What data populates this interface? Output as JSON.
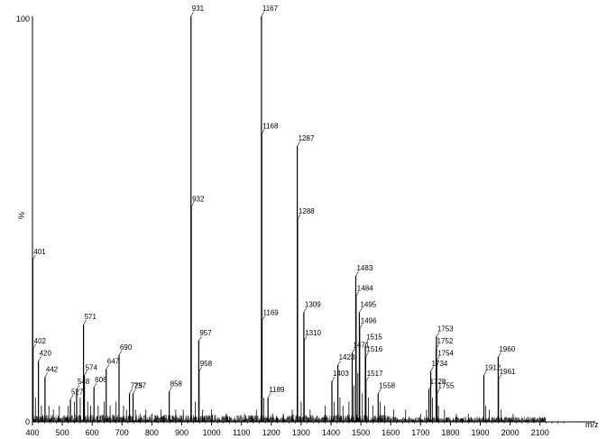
{
  "chart_data": {
    "type": "bar",
    "title": "",
    "xlabel": "m/z",
    "ylabel": "%",
    "xlim": [
      400,
      2200
    ],
    "ylim": [
      0,
      100
    ],
    "x_ticks": [
      "400",
      "500",
      "600",
      "700",
      "800",
      "900",
      "1000",
      "1100",
      "1200",
      "1300",
      "1400",
      "1500",
      "1600",
      "1700",
      "1800",
      "1900",
      "2000",
      "2100"
    ],
    "y_ticks": [
      "100",
      "0"
    ],
    "grid": false,
    "legend": "none",
    "colors": {
      "bars": "#000000",
      "axis": "#000000",
      "background": "#ffffff"
    },
    "peaks": [
      {
        "mz": 401,
        "intensity": 40,
        "label": "401"
      },
      {
        "mz": 402,
        "intensity": 18,
        "label": "402"
      },
      {
        "mz": 420,
        "intensity": 15,
        "label": "420"
      },
      {
        "mz": 442,
        "intensity": 11,
        "label": "442"
      },
      {
        "mz": 527,
        "intensity": 5.5,
        "label": "527"
      },
      {
        "mz": 548,
        "intensity": 8,
        "label": "548"
      },
      {
        "mz": 571,
        "intensity": 24,
        "label": "571"
      },
      {
        "mz": 574,
        "intensity": 11.5,
        "label": "574"
      },
      {
        "mz": 606,
        "intensity": 8.5,
        "label": "606"
      },
      {
        "mz": 647,
        "intensity": 13,
        "label": "647"
      },
      {
        "mz": 690,
        "intensity": 16.5,
        "label": "690"
      },
      {
        "mz": 725,
        "intensity": 7,
        "label": "725"
      },
      {
        "mz": 737,
        "intensity": 7,
        "label": "737"
      },
      {
        "mz": 858,
        "intensity": 7.5,
        "label": "858"
      },
      {
        "mz": 931,
        "intensity": 100,
        "label": "931"
      },
      {
        "mz": 932,
        "intensity": 53,
        "label": "932"
      },
      {
        "mz": 957,
        "intensity": 20,
        "label": "957"
      },
      {
        "mz": 958,
        "intensity": 12.5,
        "label": "958"
      },
      {
        "mz": 1167,
        "intensity": 100,
        "label": "1167"
      },
      {
        "mz": 1168,
        "intensity": 71,
        "label": "1168"
      },
      {
        "mz": 1169,
        "intensity": 25,
        "label": "1169"
      },
      {
        "mz": 1189,
        "intensity": 6,
        "label": "1189"
      },
      {
        "mz": 1287,
        "intensity": 68,
        "label": "1287"
      },
      {
        "mz": 1288,
        "intensity": 50,
        "label": "1288"
      },
      {
        "mz": 1309,
        "intensity": 27,
        "label": "1309"
      },
      {
        "mz": 1310,
        "intensity": 20,
        "label": "1310"
      },
      {
        "mz": 1403,
        "intensity": 10,
        "label": "1403"
      },
      {
        "mz": 1423,
        "intensity": 14,
        "label": "1423"
      },
      {
        "mz": 1471,
        "intensity": 17,
        "label": "1471"
      },
      {
        "mz": 1483,
        "intensity": 36,
        "label": "1483"
      },
      {
        "mz": 1484,
        "intensity": 31,
        "label": "1484"
      },
      {
        "mz": 1495,
        "intensity": 27,
        "label": "1495"
      },
      {
        "mz": 1496,
        "intensity": 23,
        "label": "1496"
      },
      {
        "mz": 1515,
        "intensity": 19,
        "label": "1515"
      },
      {
        "mz": 1516,
        "intensity": 16,
        "label": "1516"
      },
      {
        "mz": 1517,
        "intensity": 10,
        "label": "1517"
      },
      {
        "mz": 1558,
        "intensity": 7,
        "label": "1558"
      },
      {
        "mz": 1728,
        "intensity": 8,
        "label": "1728"
      },
      {
        "mz": 1734,
        "intensity": 12.5,
        "label": "1734"
      },
      {
        "mz": 1752,
        "intensity": 18,
        "label": "1752"
      },
      {
        "mz": 1753,
        "intensity": 21,
        "label": "1753"
      },
      {
        "mz": 1754,
        "intensity": 15,
        "label": "1754"
      },
      {
        "mz": 1755,
        "intensity": 7,
        "label": "1755"
      },
      {
        "mz": 1912,
        "intensity": 11.5,
        "label": "1912"
      },
      {
        "mz": 1960,
        "intensity": 16,
        "label": "1960"
      },
      {
        "mz": 1961,
        "intensity": 10.5,
        "label": "1961"
      }
    ]
  }
}
